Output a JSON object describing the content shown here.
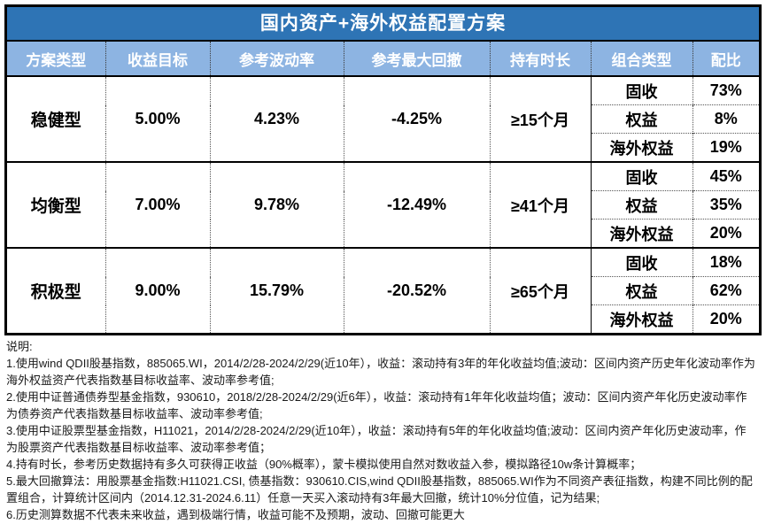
{
  "colors": {
    "title_bg": "#2E74B5",
    "header_bg": "#8DB4E2"
  },
  "title": "国内资产+海外权益配置方案",
  "table": {
    "headers": {
      "plan_type": "方案类型",
      "return_target": "收益目标",
      "volatility": "参考波动率",
      "max_drawdown": "参考最大回撤",
      "holding_period": "持有时长",
      "portfolio_type": "组合类型",
      "allocation": "配比"
    },
    "groups": [
      {
        "type": "稳健型",
        "return_target": "5.00%",
        "volatility": "4.23%",
        "max_drawdown": "-4.25%",
        "holding_period": "≥15个月",
        "allocations": [
          {
            "name": "固收",
            "pct": "73%"
          },
          {
            "name": "权益",
            "pct": "8%"
          },
          {
            "name": "海外权益",
            "pct": "19%"
          }
        ]
      },
      {
        "type": "均衡型",
        "return_target": "7.00%",
        "volatility": "9.78%",
        "max_drawdown": "-12.49%",
        "holding_period": "≥41个月",
        "allocations": [
          {
            "name": "固收",
            "pct": "45%"
          },
          {
            "name": "权益",
            "pct": "35%"
          },
          {
            "name": "海外权益",
            "pct": "20%"
          }
        ]
      },
      {
        "type": "积极型",
        "return_target": "9.00%",
        "volatility": "15.79%",
        "max_drawdown": "-20.52%",
        "holding_period": "≥65个月",
        "allocations": [
          {
            "name": "固收",
            "pct": "18%"
          },
          {
            "name": "权益",
            "pct": "62%"
          },
          {
            "name": "海外权益",
            "pct": "20%"
          }
        ]
      }
    ]
  },
  "notes": {
    "label": "说明:",
    "items": [
      "1.使用wind QDII股基指数，885065.WI，2014/2/28-2024/2/29(近10年），收益：滚动持有3年的年化收益均值;波动：区间内资产历史年化波动率作为海外权益资产代表指数基目标收益率、波动率参考值;",
      "2.使用中证普通债券型基金指数，930610，2018/2/28-2024/2/29(近6年），收益：滚动持有1年年化收益均值；波动：区间内资产年化历史波动率作为债券资产代表指数基目标收益率、波动率参考值;",
      "3.使用中证股票型基金指数，H11021，2014/2/28-2024/2/29(近10年），收益：滚动持有5年的年化收益均值;波动：区间内资产年化历史波动率，作为股票资产代表指数基目标收益率、波动率参考值；",
      "4.持有时长，参考历史数据持有多久可获得正收益（90%概率），蒙卡模拟使用自然对数收益入参，模拟路径10w条计算概率；",
      "5.最大回撤算法：用股票基金指数:H11021.CSI, 债基指数：930610.CIS,wind QDII股基指数，885065.WI作为不同资产表征指数，构建不同比例的配置组合，计算统计区间内（2014.12.31-2024.6.11）任意一天买入滚动持有3年最大回撤，统计10%分位值，记为结果;",
      "6.历史测算数据不代表未来收益，遇到极端行情，收益可能不及预期，波动、回撤可能更大"
    ]
  }
}
